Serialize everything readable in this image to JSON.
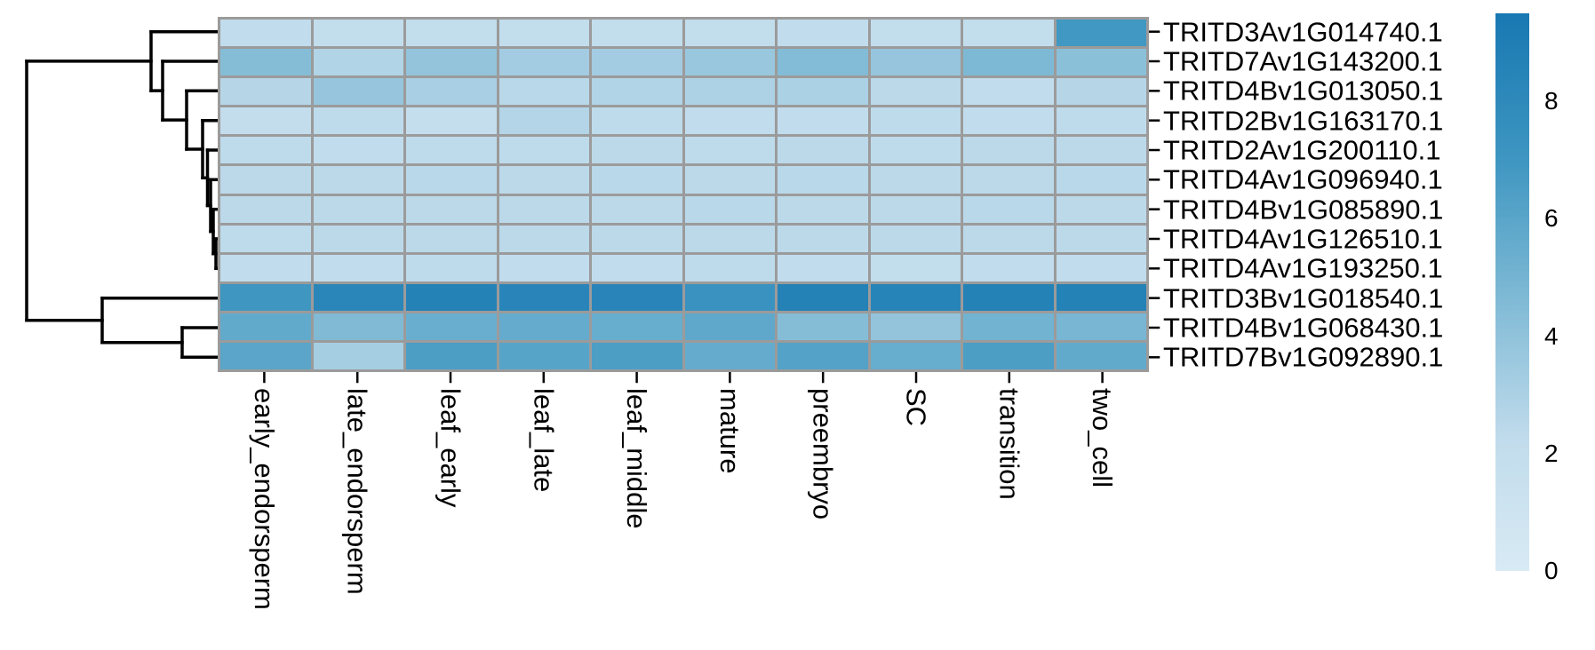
{
  "chart_data": {
    "type": "heatmap",
    "rows": [
      "TRITD3Av1G014740.1",
      "TRITD7Av1G143200.1",
      "TRITD4Bv1G013050.1",
      "TRITD2Bv1G163170.1",
      "TRITD2Av1G200110.1",
      "TRITD4Av1G096940.1",
      "TRITD4Bv1G085890.1",
      "TRITD4Av1G126510.1",
      "TRITD4Av1G193250.1",
      "TRITD3Bv1G018540.1",
      "TRITD4Bv1G068430.1",
      "TRITD7Bv1G092890.1"
    ],
    "columns": [
      "early_endorsperm",
      "late_endorsperm",
      "leaf_early",
      "leaf_late",
      "leaf_middle",
      "mature",
      "preembryo",
      "SC",
      "transition",
      "two_cell"
    ],
    "values": [
      [
        2.2,
        2.1,
        2.1,
        2.1,
        2.1,
        2.1,
        2.2,
        2.1,
        2.1,
        6.9
      ],
      [
        4.4,
        2.8,
        3.9,
        3.3,
        3.3,
        3.7,
        4.5,
        3.8,
        4.7,
        4.2
      ],
      [
        2.6,
        3.8,
        3.1,
        2.5,
        2.8,
        2.9,
        3.0,
        2.4,
        2.2,
        2.6
      ],
      [
        2.0,
        2.3,
        1.9,
        2.7,
        2.3,
        2.2,
        2.2,
        2.3,
        2.2,
        2.3
      ],
      [
        2.3,
        2.2,
        2.3,
        2.3,
        2.4,
        2.3,
        2.4,
        2.3,
        2.4,
        2.4
      ],
      [
        2.4,
        2.4,
        2.5,
        2.4,
        2.5,
        2.4,
        2.5,
        2.4,
        2.4,
        2.5
      ],
      [
        2.4,
        2.4,
        2.4,
        2.4,
        2.4,
        2.5,
        2.4,
        2.4,
        2.5,
        2.4
      ],
      [
        2.3,
        2.4,
        2.4,
        2.4,
        2.4,
        2.4,
        2.4,
        2.4,
        2.4,
        2.4
      ],
      [
        2.2,
        2.2,
        2.3,
        2.2,
        2.2,
        2.3,
        2.2,
        2.1,
        2.2,
        2.2
      ],
      [
        7.0,
        8.3,
        8.7,
        8.4,
        8.4,
        7.3,
        8.7,
        8.5,
        8.7,
        8.7
      ],
      [
        5.7,
        4.6,
        5.4,
        5.6,
        5.5,
        5.8,
        4.4,
        3.9,
        5.1,
        4.9
      ],
      [
        6.0,
        3.2,
        6.5,
        6.1,
        6.5,
        5.6,
        6.2,
        5.5,
        6.5,
        5.7
      ]
    ],
    "colorbar": {
      "min": 0,
      "max": 9.5,
      "ticks": [
        8,
        6,
        4,
        2,
        0
      ]
    },
    "colormap_stops": [
      {
        "v": 0.0,
        "color": "#d8eaf4"
      },
      {
        "v": 2.2,
        "color": "#c1dcec"
      },
      {
        "v": 4.75,
        "color": "#7cb8d4"
      },
      {
        "v": 7.0,
        "color": "#3e96c1"
      },
      {
        "v": 9.5,
        "color": "#1878b2"
      }
    ],
    "grid_color": "#9b9b9b",
    "dendrogram_color": "#000000",
    "row_dendrogram": {
      "orientation": "left",
      "clusters": "root splits rows 1-9 vs rows 10-12; rows 2-9 nest under row 1 chain; rows 11-12 pair under row 10",
      "segments": [
        [
          30,
          68.9,
          30,
          360.7
        ],
        [
          30,
          68.9,
          170,
          68.9
        ],
        [
          30,
          360.7,
          115,
          360.7
        ],
        [
          170,
          35.7,
          170,
          102.1
        ],
        [
          170,
          35.7,
          245,
          35.7
        ],
        [
          170,
          102.1,
          183,
          102.1
        ],
        [
          183,
          69,
          183,
          135.1
        ],
        [
          183,
          69,
          245,
          69
        ],
        [
          183,
          135.1,
          210,
          135.1
        ],
        [
          210,
          102.3,
          210,
          168
        ],
        [
          210,
          102.3,
          245,
          102.3
        ],
        [
          210,
          168,
          228,
          168
        ],
        [
          228,
          135.7,
          228,
          200.3
        ],
        [
          228,
          135.7,
          245,
          135.7
        ],
        [
          228,
          200.3,
          233.5,
          200.3
        ],
        [
          233.5,
          169,
          233.5,
          231.5
        ],
        [
          233.5,
          169,
          245,
          169
        ],
        [
          233.5,
          231.5,
          237,
          231.5
        ],
        [
          237,
          202.3,
          237,
          260.7
        ],
        [
          237,
          202.3,
          245,
          202.3
        ],
        [
          237,
          260.7,
          240,
          260.7
        ],
        [
          240,
          235.7,
          240,
          285.7
        ],
        [
          240,
          235.7,
          245,
          235.7
        ],
        [
          240,
          285.7,
          243,
          285.7
        ],
        [
          243,
          269,
          243,
          302.3
        ],
        [
          243,
          269,
          245,
          269
        ],
        [
          243,
          302.3,
          245,
          302.3
        ],
        [
          115,
          335.7,
          115,
          385.7
        ],
        [
          115,
          335.7,
          245,
          335.7
        ],
        [
          115,
          385.7,
          205,
          385.7
        ],
        [
          205,
          369,
          205,
          402.3
        ],
        [
          205,
          369,
          245,
          369
        ],
        [
          205,
          402.3,
          245,
          402.3
        ]
      ]
    }
  }
}
